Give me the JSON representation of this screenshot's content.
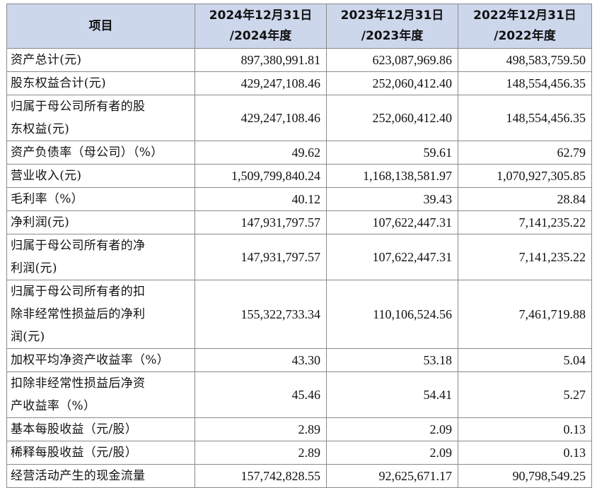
{
  "header": {
    "item": "项目",
    "columns": [
      {
        "line1": "2024年12月31日",
        "line2": "/2024年度"
      },
      {
        "line1": "2023年12月31日",
        "line2": "/2023年度"
      },
      {
        "line1": "2022年12月31日",
        "line2": "/2022年度"
      }
    ]
  },
  "rows": [
    {
      "label": [
        "资产总计(元)"
      ],
      "values": [
        "897,380,991.81",
        "623,087,969.86",
        "498,583,759.50"
      ]
    },
    {
      "label": [
        "股东权益合计(元)"
      ],
      "values": [
        "429,247,108.46",
        "252,060,412.40",
        "148,554,456.35"
      ]
    },
    {
      "label": [
        "归属于母公司所有者的股",
        "东权益(元)"
      ],
      "values": [
        "429,247,108.46",
        "252,060,412.40",
        "148,554,456.35"
      ]
    },
    {
      "label": [
        "资产负债率（母公司）（%）"
      ],
      "values": [
        "49.62",
        "59.61",
        "62.79"
      ]
    },
    {
      "label": [
        "营业收入(元)"
      ],
      "values": [
        "1,509,799,840.24",
        "1,168,138,581.97",
        "1,070,927,305.85"
      ]
    },
    {
      "label": [
        "毛利率（%）"
      ],
      "values": [
        "40.12",
        "39.43",
        "28.84"
      ]
    },
    {
      "label": [
        "净利润(元)"
      ],
      "values": [
        "147,931,797.57",
        "107,622,447.31",
        "7,141,235.22"
      ]
    },
    {
      "label": [
        "归属于母公司所有者的净",
        "利润(元)"
      ],
      "values": [
        "147,931,797.57",
        "107,622,447.31",
        "7,141,235.22"
      ]
    },
    {
      "label": [
        "归属于母公司所有者的扣",
        "除非经常性损益后的净利",
        "润(元)"
      ],
      "values": [
        "155,322,733.34",
        "110,106,524.56",
        "7,461,719.88"
      ]
    },
    {
      "label": [
        "加权平均净资产收益率（%）"
      ],
      "values": [
        "43.30",
        "53.18",
        "5.04"
      ]
    },
    {
      "label": [
        "扣除非经常性损益后净资",
        "产收益率（%）"
      ],
      "values": [
        "45.46",
        "54.41",
        "5.27"
      ]
    },
    {
      "label": [
        "基本每股收益（元/股）"
      ],
      "values": [
        "2.89",
        "2.09",
        "0.13"
      ]
    },
    {
      "label": [
        "稀释每股收益（元/股）"
      ],
      "values": [
        "2.89",
        "2.09",
        "0.13"
      ]
    },
    {
      "label": [
        "经营活动产生的现金流量"
      ],
      "values": [
        "157,742,828.55",
        "92,625,671.17",
        "90,798,549.25"
      ]
    }
  ]
}
